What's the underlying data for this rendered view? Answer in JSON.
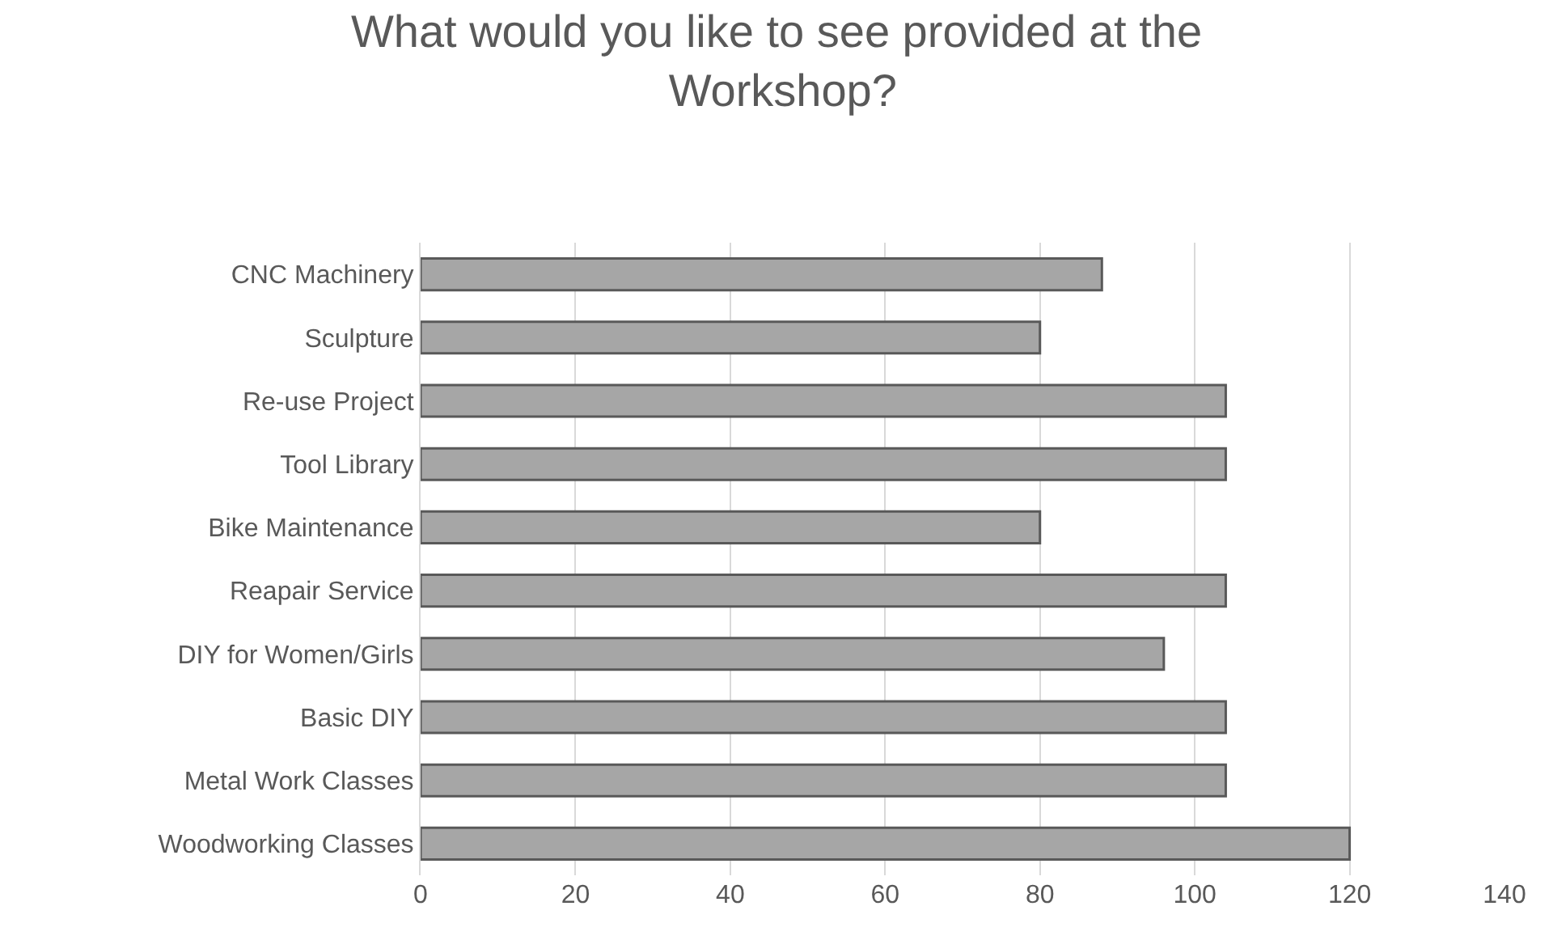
{
  "chart_data": {
    "type": "bar",
    "orientation": "horizontal",
    "title": "What would you like to see provided at the Workshop?",
    "categories": [
      "CNC Machinery",
      "Sculpture",
      "Re-use Project",
      "Tool Library",
      "Bike Maintenance",
      "Reapair Service",
      "DIY for Women/Girls",
      "Basic DIY",
      "Metal Work Classes",
      "Woodworking Classes"
    ],
    "values": [
      88,
      80,
      104,
      104,
      80,
      104,
      96,
      104,
      104,
      120
    ],
    "color": "#a6a6a6",
    "xlim": [
      0,
      140
    ],
    "xticks": [
      0,
      20,
      40,
      60,
      80,
      100,
      120,
      140
    ],
    "grid": "x",
    "legend": false
  }
}
